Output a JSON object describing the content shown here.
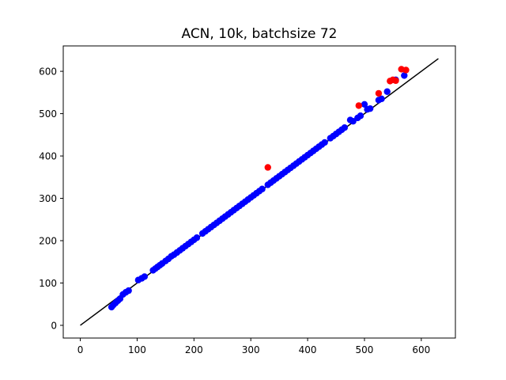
{
  "chart_data": {
    "type": "scatter",
    "title": "ACN, 10k, batchsize 72",
    "xlabel": "",
    "ylabel": "",
    "xlim": [
      -30,
      660
    ],
    "ylim": [
      -30,
      660
    ],
    "xticks": [
      0,
      100,
      200,
      300,
      400,
      500,
      600
    ],
    "yticks": [
      0,
      100,
      200,
      300,
      400,
      500,
      600
    ],
    "grid": false,
    "reference_line": {
      "x": [
        0,
        630
      ],
      "y": [
        0,
        630
      ],
      "color": "#000000"
    },
    "series": [
      {
        "color": "#0000ff",
        "points": [
          [
            55,
            43
          ],
          [
            58,
            48
          ],
          [
            62,
            53
          ],
          [
            66,
            58
          ],
          [
            70,
            63
          ],
          [
            75,
            73
          ],
          [
            80,
            78
          ],
          [
            85,
            82
          ],
          [
            102,
            107
          ],
          [
            108,
            111
          ],
          [
            113,
            115
          ],
          [
            128,
            130
          ],
          [
            132,
            134
          ],
          [
            136,
            138
          ],
          [
            140,
            142
          ],
          [
            144,
            146
          ],
          [
            150,
            152
          ],
          [
            155,
            157
          ],
          [
            160,
            163
          ],
          [
            165,
            167
          ],
          [
            170,
            172
          ],
          [
            175,
            177
          ],
          [
            180,
            182
          ],
          [
            185,
            187
          ],
          [
            190,
            192
          ],
          [
            195,
            197
          ],
          [
            200,
            202
          ],
          [
            205,
            207
          ],
          [
            215,
            217
          ],
          [
            220,
            222
          ],
          [
            225,
            227
          ],
          [
            230,
            232
          ],
          [
            235,
            237
          ],
          [
            240,
            242
          ],
          [
            245,
            247
          ],
          [
            250,
            252
          ],
          [
            255,
            257
          ],
          [
            260,
            262
          ],
          [
            265,
            267
          ],
          [
            270,
            272
          ],
          [
            275,
            277
          ],
          [
            280,
            282
          ],
          [
            285,
            287
          ],
          [
            290,
            292
          ],
          [
            295,
            297
          ],
          [
            300,
            302
          ],
          [
            305,
            307
          ],
          [
            310,
            312
          ],
          [
            315,
            317
          ],
          [
            320,
            322
          ],
          [
            330,
            332
          ],
          [
            335,
            337
          ],
          [
            340,
            342
          ],
          [
            345,
            347
          ],
          [
            350,
            352
          ],
          [
            355,
            357
          ],
          [
            360,
            362
          ],
          [
            365,
            367
          ],
          [
            370,
            372
          ],
          [
            375,
            377
          ],
          [
            380,
            382
          ],
          [
            385,
            387
          ],
          [
            390,
            392
          ],
          [
            395,
            397
          ],
          [
            400,
            402
          ],
          [
            405,
            407
          ],
          [
            410,
            412
          ],
          [
            415,
            417
          ],
          [
            420,
            422
          ],
          [
            425,
            427
          ],
          [
            430,
            432
          ],
          [
            440,
            442
          ],
          [
            445,
            447
          ],
          [
            450,
            452
          ],
          [
            455,
            457
          ],
          [
            460,
            462
          ],
          [
            465,
            467
          ],
          [
            475,
            485
          ],
          [
            480,
            482
          ],
          [
            488,
            490
          ],
          [
            493,
            495
          ],
          [
            500,
            522
          ],
          [
            505,
            510
          ],
          [
            510,
            512
          ],
          [
            525,
            532
          ],
          [
            530,
            535
          ],
          [
            540,
            552
          ],
          [
            555,
            580
          ],
          [
            570,
            590
          ]
        ]
      },
      {
        "color": "#ff0000",
        "points": [
          [
            330,
            373
          ],
          [
            490,
            519
          ],
          [
            525,
            548
          ],
          [
            545,
            577
          ],
          [
            550,
            580
          ],
          [
            555,
            578
          ],
          [
            565,
            605
          ],
          [
            573,
            603
          ]
        ]
      }
    ]
  }
}
